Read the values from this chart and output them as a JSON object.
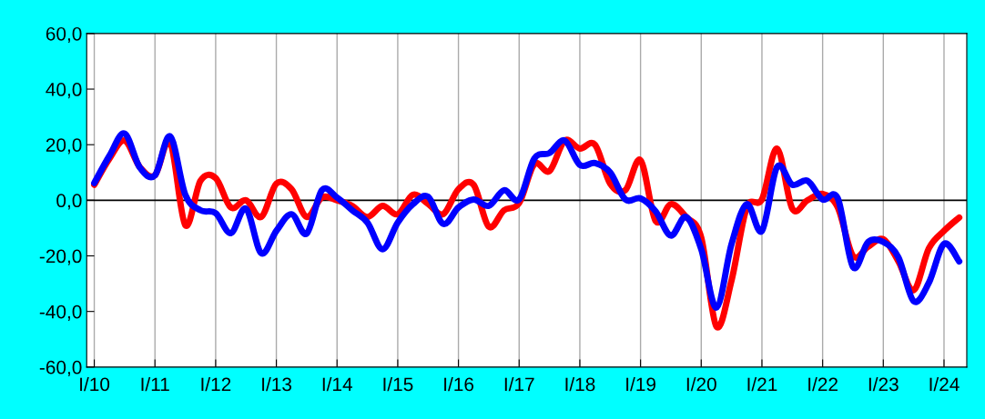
{
  "chart_data": {
    "type": "line",
    "categories": [
      "I/10",
      null,
      null,
      null,
      "I/11",
      null,
      null,
      null,
      "I/12",
      null,
      null,
      null,
      "I/13",
      null,
      null,
      null,
      "I/14",
      null,
      null,
      null,
      "I/15",
      null,
      null,
      null,
      "I/16",
      null,
      null,
      null,
      "I/17",
      null,
      null,
      null,
      "I/18",
      null,
      null,
      null,
      "I/19",
      null,
      null,
      null,
      "I/20",
      null,
      null,
      null,
      "I/21",
      null,
      null,
      null,
      "I/22",
      null,
      null,
      null,
      "I/23",
      null,
      null,
      null,
      "I/24",
      null
    ],
    "series": [
      {
        "color": "#ff0000",
        "values": [
          5.6,
          15,
          21.5,
          12,
          9,
          21,
          -9,
          7,
          8,
          -2.6,
          0,
          -6,
          6,
          4,
          -6,
          1,
          0,
          -2,
          -6,
          -2,
          -5,
          2,
          -1.3,
          -5,
          4,
          5.6,
          -9.5,
          -3.6,
          -1,
          13,
          10.5,
          21.5,
          18.6,
          20,
          6,
          3.6,
          14.4,
          -7.5,
          -1.4,
          -6,
          -13.4,
          -45.4,
          -28.8,
          -2.6,
          0.3,
          18.6,
          -3,
          0,
          2.3,
          -2.6,
          -20,
          -16.7,
          -14,
          -22,
          -32.4,
          -17.3,
          -11,
          -6.2
        ]
      },
      {
        "color": "#0000ff",
        "values": [
          6.2,
          16,
          24,
          11.8,
          9,
          23,
          2,
          -3.6,
          -4.6,
          -11.8,
          -3,
          -19,
          -11,
          -5,
          -12,
          3.6,
          1,
          -3.6,
          -8,
          -17.6,
          -8,
          -1.4,
          1.3,
          -8.5,
          -2.6,
          0.3,
          -2,
          3.6,
          0.3,
          15,
          17,
          21.5,
          12.7,
          13.4,
          10,
          0.3,
          0.7,
          -4,
          -12.7,
          -6,
          -17.6,
          -38.6,
          -15.7,
          -1.4,
          -11,
          12,
          5.6,
          7,
          0.3,
          0.7,
          -24,
          -15,
          -15,
          -20.6,
          -36.3,
          -29.7,
          -15.7,
          -22
        ]
      }
    ],
    "ylim": [
      -60,
      60
    ],
    "yticks": [
      {
        "value": -60,
        "label": "-60,0"
      },
      {
        "value": -40,
        "label": "-40,0"
      },
      {
        "value": -20,
        "label": "-20,0"
      },
      {
        "value": 0,
        "label": "0,0"
      },
      {
        "value": 20,
        "label": "20,0"
      },
      {
        "value": 40,
        "label": "40,0"
      },
      {
        "value": 60,
        "label": "60,0"
      }
    ],
    "grid": "x",
    "legend": false,
    "marker": "none",
    "line_style": "solid",
    "ref_lines": [
      {
        "axis": "y",
        "value": 0,
        "color": "#000000"
      }
    ]
  }
}
